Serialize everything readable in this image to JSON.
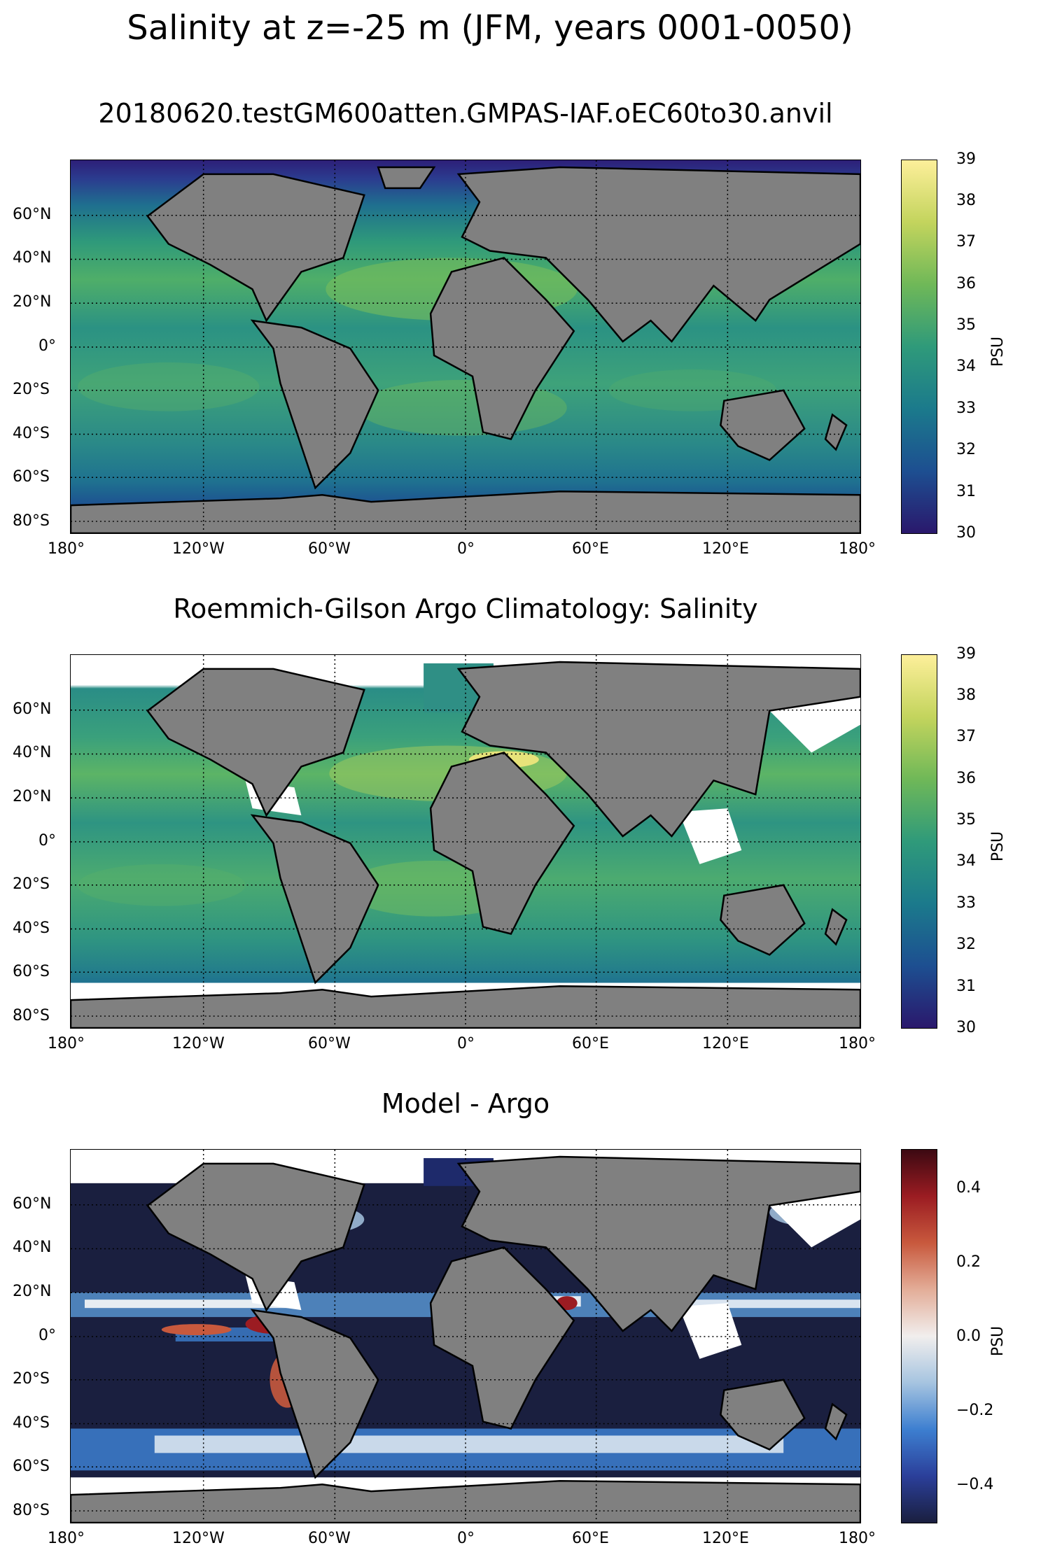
{
  "figure": {
    "suptitle": "Salinity at z=-25 m (JFM, years 0001-0050)"
  },
  "panels": [
    {
      "title": "20180620.testGM600atten.GMPAS-IAF.oEC60to30.anvil",
      "colorbar": {
        "label": "PSU",
        "colormap": "haline",
        "colors": [
          "#2a186c",
          "#1d4f91",
          "#1b7a8c",
          "#2f9a7a",
          "#6fb858",
          "#c3d45d",
          "#fdef9a"
        ],
        "ticks": [
          "39",
          "38",
          "37",
          "36",
          "35",
          "34",
          "33",
          "32",
          "31",
          "30"
        ]
      }
    },
    {
      "title": "Roemmich-Gilson Argo Climatology: Salinity",
      "colorbar": {
        "label": "PSU",
        "colormap": "haline",
        "colors": [
          "#2a186c",
          "#1d4f91",
          "#1b7a8c",
          "#2f9a7a",
          "#6fb858",
          "#c3d45d",
          "#fdef9a"
        ],
        "ticks": [
          "39",
          "38",
          "37",
          "36",
          "35",
          "34",
          "33",
          "32",
          "31",
          "30"
        ]
      }
    },
    {
      "title": "Model - Argo",
      "colorbar": {
        "label": "PSU",
        "colormap": "balance",
        "colors": [
          "#1a1f3f",
          "#2b3f9a",
          "#3d7fd0",
          "#a6c4e0",
          "#f1eeed",
          "#e3ad98",
          "#c8593d",
          "#9b1c22",
          "#3c0912"
        ],
        "ticks": [
          "0.4",
          "0.2",
          "0.0",
          "−0.2",
          "−0.4"
        ]
      }
    }
  ],
  "axes": {
    "lat_ticks": [
      "60°N",
      "40°N",
      "20°N",
      "0°",
      "20°S",
      "40°S",
      "60°S",
      "80°S"
    ],
    "lon_ticks": [
      "180°",
      "120°W",
      "60°W",
      "0°",
      "60°E",
      "120°E",
      "180°"
    ]
  },
  "colors": {
    "land": "#808080",
    "missing": "#ffffff",
    "coastline": "#000000"
  }
}
